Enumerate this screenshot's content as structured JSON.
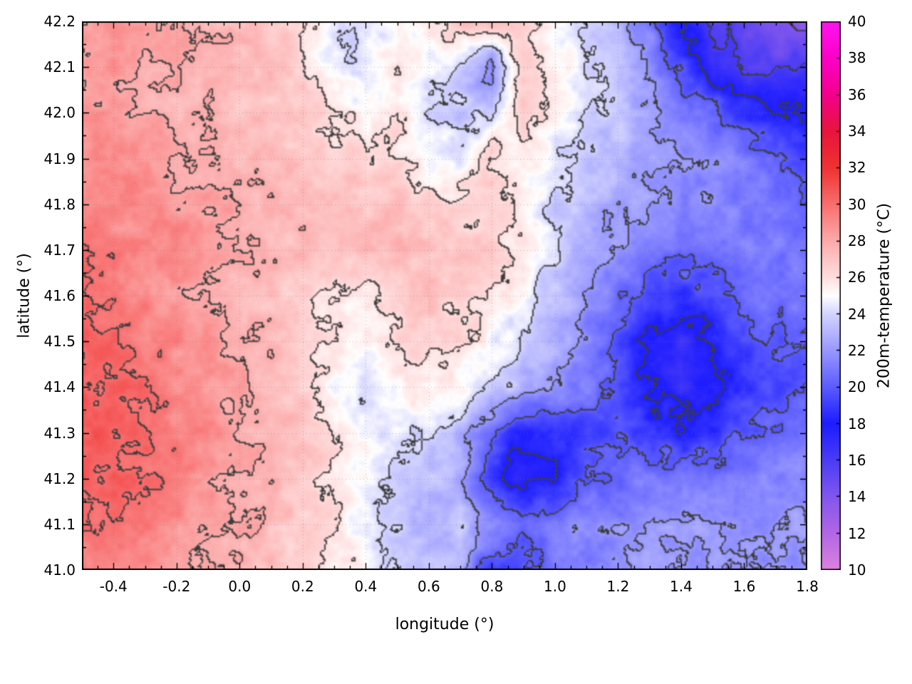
{
  "figure": {
    "background": "#ffffff"
  },
  "chart_data": {
    "type": "heatmap",
    "title": "",
    "xlabel": "longitude (°)",
    "ylabel": "latitude (°)",
    "colorbar_label": "200m-temperature (°C)",
    "xlim": [
      -0.5,
      1.8
    ],
    "ylim": [
      41.0,
      42.2
    ],
    "x_tick_values": [
      -0.4,
      -0.2,
      0.0,
      0.2,
      0.4,
      0.6,
      0.8,
      1.0,
      1.2,
      1.4,
      1.6,
      1.8
    ],
    "x_tick_labels": [
      "-0.4",
      "-0.2",
      "0.0",
      "0.2",
      "0.4",
      "0.6",
      "0.8",
      "1.0",
      "1.2",
      "1.4",
      "1.6",
      "1.8"
    ],
    "y_tick_values": [
      41.0,
      41.1,
      41.2,
      41.3,
      41.4,
      41.5,
      41.6,
      41.7,
      41.8,
      41.9,
      42.0,
      42.1,
      42.2
    ],
    "y_tick_labels": [
      "41.0",
      "41.1",
      "41.2",
      "41.3",
      "41.4",
      "41.5",
      "41.6",
      "41.7",
      "41.8",
      "41.9",
      "42.0",
      "42.1",
      "42.2"
    ],
    "colorbar_range": [
      10,
      40
    ],
    "colorbar_tick_values": [
      10,
      12,
      14,
      16,
      18,
      20,
      22,
      24,
      26,
      28,
      30,
      32,
      34,
      36,
      38,
      40
    ],
    "colorbar_tick_labels": [
      "10",
      "12",
      "14",
      "16",
      "18",
      "20",
      "22",
      "24",
      "26",
      "28",
      "30",
      "32",
      "34",
      "36",
      "38",
      "40"
    ],
    "contour_interval": 2,
    "contour_color": "#3c3c3c",
    "axis_color": "#000000",
    "grid_color": "#787878",
    "grid_dotted": true,
    "colormap": [
      [
        10,
        "#dd82dd"
      ],
      [
        12,
        "#b266e6"
      ],
      [
        14,
        "#8256ee"
      ],
      [
        16,
        "#4a3cf6"
      ],
      [
        18,
        "#1c1cff"
      ],
      [
        20,
        "#5c5cff"
      ],
      [
        22,
        "#9898ff"
      ],
      [
        24,
        "#d4d4ff"
      ],
      [
        25,
        "#ffffff"
      ],
      [
        26,
        "#ffdede"
      ],
      [
        28,
        "#fcaaaa"
      ],
      [
        30,
        "#f86e6e"
      ],
      [
        32,
        "#f03232"
      ],
      [
        34,
        "#e8143c"
      ],
      [
        36,
        "#f4008c"
      ],
      [
        38,
        "#fc00c8"
      ],
      [
        40,
        "#ff14f0"
      ]
    ],
    "lon_values": [
      -0.5,
      -0.4,
      -0.3,
      -0.2,
      -0.1,
      0.0,
      0.1,
      0.2,
      0.3,
      0.4,
      0.5,
      0.6,
      0.7,
      0.8,
      0.9,
      1.0,
      1.1,
      1.2,
      1.3,
      1.4,
      1.5,
      1.6,
      1.7,
      1.8
    ],
    "lat_values": [
      42.2,
      42.1,
      42.0,
      41.9,
      41.8,
      41.7,
      41.6,
      41.5,
      41.4,
      41.3,
      41.2,
      41.1,
      41.0
    ],
    "values": [
      [
        28.5,
        28.5,
        28,
        28,
        27.5,
        27.5,
        27,
        26,
        24.5,
        24,
        25,
        26,
        27,
        27.5,
        27,
        25,
        24,
        23,
        21,
        18,
        16,
        15,
        14,
        13.5
      ],
      [
        28.5,
        28.5,
        28,
        28,
        27.5,
        27.5,
        27,
        26.5,
        24.5,
        24.5,
        25.5,
        24.5,
        24,
        21,
        27,
        25.5,
        24,
        23.5,
        22,
        19.5,
        17,
        16,
        15.5,
        16
      ],
      [
        28.5,
        28.5,
        28,
        27.5,
        27.5,
        27,
        27,
        26.5,
        26,
        25,
        26,
        24.5,
        23.5,
        24,
        26.5,
        25.5,
        24,
        23.5,
        22.5,
        21.5,
        20.5,
        19,
        18,
        18
      ],
      [
        29,
        29,
        28.5,
        28,
        28,
        27.5,
        27.5,
        27,
        26.5,
        26.5,
        26,
        25,
        24.5,
        26.5,
        25.5,
        24.5,
        23.5,
        23,
        22.5,
        22,
        21.5,
        21,
        20.5,
        19.5
      ],
      [
        29.5,
        29,
        29,
        28.5,
        28.5,
        28,
        27.5,
        27.5,
        27,
        27,
        27,
        26.5,
        26.5,
        26.5,
        25.5,
        23.5,
        23,
        22.5,
        22,
        21.5,
        21.5,
        21,
        20.5,
        20
      ],
      [
        30,
        29.5,
        29,
        29,
        28.5,
        28,
        27.5,
        27.5,
        27,
        27.5,
        27.5,
        27,
        27,
        26.5,
        25.5,
        24,
        22.5,
        22,
        21,
        20.5,
        20.5,
        21,
        21,
        20.5
      ],
      [
        30,
        29.5,
        29,
        28.5,
        28,
        27.5,
        27,
        26.5,
        26,
        25.5,
        26.5,
        27,
        26.5,
        26,
        25,
        23.5,
        22,
        20.5,
        19.5,
        19,
        19.5,
        20.5,
        21,
        20.5
      ],
      [
        30.5,
        30,
        29.5,
        29,
        28.5,
        28,
        27.5,
        26.5,
        25.5,
        25,
        26,
        26.5,
        26,
        25,
        24,
        23,
        21.5,
        19.5,
        17.5,
        17,
        18,
        19,
        20,
        20.5
      ],
      [
        30.5,
        30.5,
        30,
        29,
        28.5,
        28,
        27.5,
        26.5,
        25,
        24.5,
        25.5,
        25.5,
        25,
        24,
        23,
        22,
        21,
        20,
        18,
        17,
        17.5,
        18.5,
        19.5,
        20
      ],
      [
        31,
        30.5,
        30,
        29.5,
        29,
        28,
        27.5,
        27,
        26,
        25,
        24.5,
        24,
        23,
        20.5,
        18,
        18.5,
        19,
        19.5,
        19,
        18.5,
        19,
        20,
        20.5,
        21
      ],
      [
        30.5,
        30.5,
        30,
        29.5,
        28.5,
        28,
        27.5,
        27,
        26,
        25,
        24,
        23.5,
        22.5,
        19,
        17,
        18,
        20,
        20.5,
        21,
        21,
        21,
        21,
        21.5,
        21.5
      ],
      [
        30,
        30,
        29.5,
        29,
        28.5,
        28,
        27.5,
        26.5,
        26,
        24.5,
        23.5,
        23,
        23.5,
        21.5,
        20,
        21,
        21.5,
        21.5,
        22,
        22,
        22,
        22,
        22,
        22
      ],
      [
        29.5,
        29.5,
        29,
        28.5,
        28,
        27.5,
        27,
        26.5,
        26,
        25,
        24,
        23.5,
        22.5,
        19,
        19.5,
        21,
        21.5,
        22,
        22,
        22,
        22,
        22,
        22,
        22
      ]
    ]
  }
}
